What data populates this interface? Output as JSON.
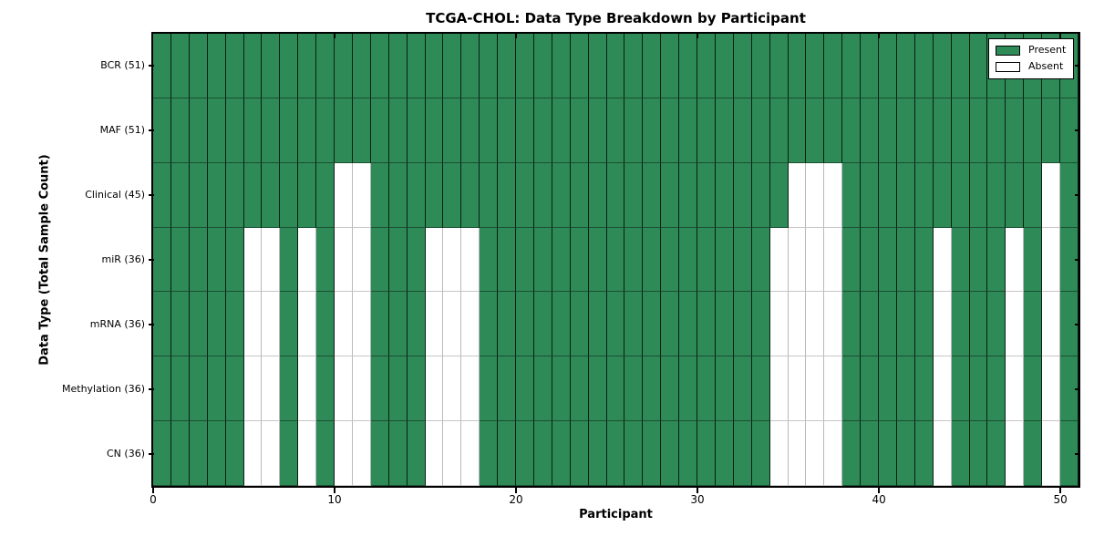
{
  "chart_data": {
    "type": "heatmap",
    "title": "TCGA-CHOL: Data Type Breakdown by Participant",
    "xlabel": "Participant",
    "ylabel": "Data Type (Total Sample Count)",
    "x_ticks": [
      0,
      10,
      20,
      30,
      40,
      50
    ],
    "x_range": [
      0,
      51
    ],
    "n_participants": 51,
    "grid": false,
    "legend_position": "upper right",
    "colors": {
      "present": "#2e8b57",
      "absent": "#ffffff"
    },
    "legend": [
      {
        "label": "Present",
        "color": "#2e8b57"
      },
      {
        "label": "Absent",
        "color": "#ffffff"
      }
    ],
    "rows": [
      {
        "label": "BCR (51)",
        "name": "BCR",
        "total": 51,
        "absent": []
      },
      {
        "label": "MAF (51)",
        "name": "MAF",
        "total": 51,
        "absent": []
      },
      {
        "label": "Clinical (45)",
        "name": "Clinical",
        "total": 45,
        "absent": [
          10,
          11,
          35,
          36,
          37,
          49
        ]
      },
      {
        "label": "miR (36)",
        "name": "miR",
        "total": 36,
        "absent": [
          5,
          6,
          8,
          10,
          11,
          15,
          16,
          17,
          34,
          35,
          36,
          37,
          43,
          47,
          49
        ]
      },
      {
        "label": "mRNA (36)",
        "name": "mRNA",
        "total": 36,
        "absent": [
          5,
          6,
          8,
          10,
          11,
          15,
          16,
          17,
          34,
          35,
          36,
          37,
          43,
          47,
          49
        ]
      },
      {
        "label": "Methylation (36)",
        "name": "Methylation",
        "total": 36,
        "absent": [
          5,
          6,
          8,
          10,
          11,
          15,
          16,
          17,
          34,
          35,
          36,
          37,
          43,
          47,
          49
        ]
      },
      {
        "label": "CN (36)",
        "name": "CN",
        "total": 36,
        "absent": [
          5,
          6,
          8,
          10,
          11,
          15,
          16,
          17,
          34,
          35,
          36,
          37,
          43,
          47,
          49
        ]
      }
    ]
  }
}
